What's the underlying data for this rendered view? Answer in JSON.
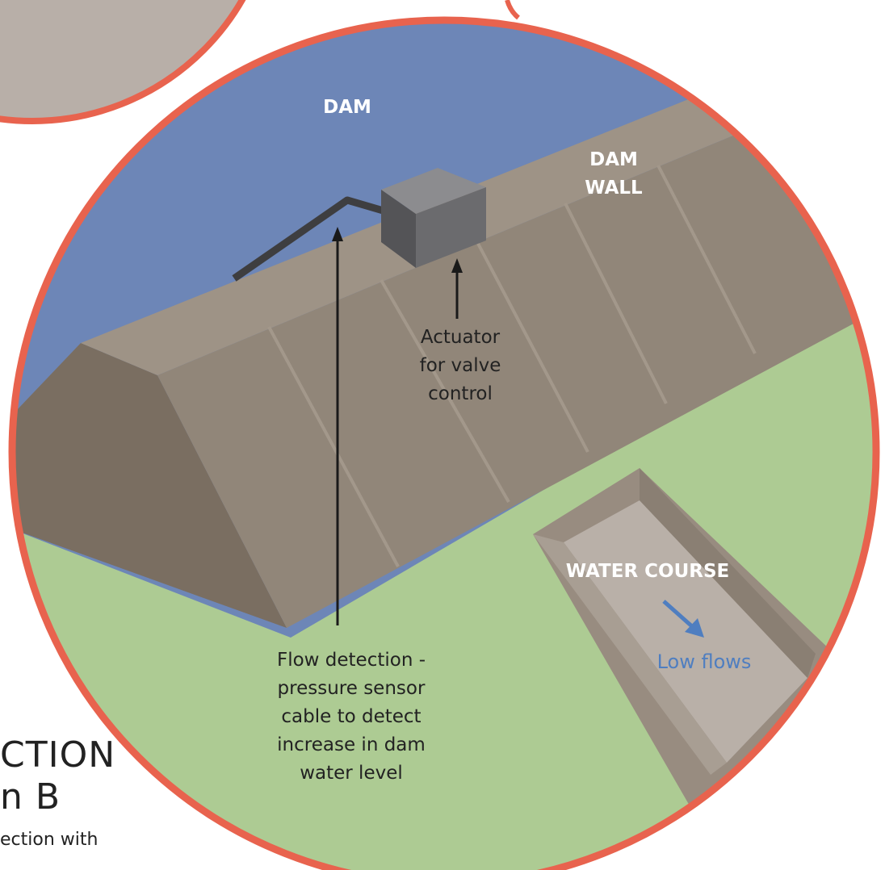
{
  "labels": {
    "dam": "DAM",
    "dam_wall_line1": "DAM",
    "dam_wall_line2": "WALL",
    "actuator_line1": "Actuator",
    "actuator_line2": "for valve",
    "actuator_line3": "control",
    "flow_line1": "Flow detection -",
    "flow_line2": "pressure sensor",
    "flow_line3": "cable to detect",
    "flow_line4": "increase in dam",
    "flow_line5": "water level",
    "water_course": "WATER COURSE",
    "low_flows": "Low flows"
  },
  "side_text": {
    "title_line1": "CTION",
    "title_line2": "n B",
    "subtitle": "ection with"
  },
  "colors": {
    "ring": "#e8634e",
    "water": "#6d86b7",
    "grass": "#adcb93",
    "wall_face": "#918679",
    "wall_top": "#9e9386",
    "wall_end": "#7a6e61",
    "actuator": "#6b6b6e",
    "cable": "#3e3e40",
    "course": "#b9b0a8",
    "side_circle": "#b8afa8"
  }
}
